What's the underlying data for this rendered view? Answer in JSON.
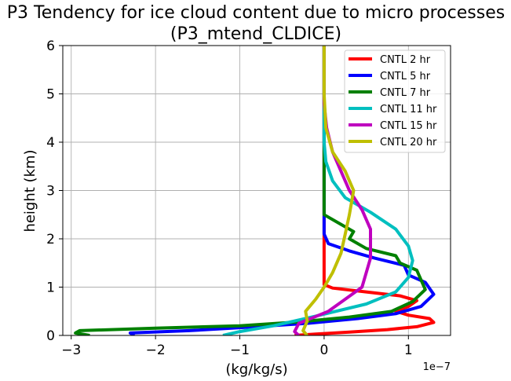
{
  "chart_data": {
    "type": "line",
    "title": "P3 Tendency for ice cloud content due to micro processes",
    "subtitle": "(P3_mtend_CLDICE)",
    "xlabel": "(kg/kg/s)",
    "ylabel": "height (km)",
    "x_offset_label": "1e−7",
    "xlim": [
      -3.1,
      1.5
    ],
    "ylim": [
      0,
      6
    ],
    "xticks": [
      -3,
      -2,
      -1,
      0,
      1
    ],
    "xtick_labels": [
      "−3",
      "−2",
      "−1",
      "0",
      "1"
    ],
    "yticks": [
      0,
      1,
      2,
      3,
      4,
      5,
      6
    ],
    "ytick_labels": [
      "0",
      "1",
      "2",
      "3",
      "4",
      "5",
      "6"
    ],
    "grid": true,
    "legend_position": "top-right",
    "series": [
      {
        "name": "CNTL 2 hr",
        "color": "#ff0000",
        "points": [
          [
            -0.35,
            0.0
          ],
          [
            -0.1,
            0.03
          ],
          [
            0.3,
            0.07
          ],
          [
            0.75,
            0.12
          ],
          [
            1.1,
            0.18
          ],
          [
            1.3,
            0.27
          ],
          [
            1.25,
            0.35
          ],
          [
            1.0,
            0.42
          ],
          [
            0.85,
            0.5
          ],
          [
            1.0,
            0.6
          ],
          [
            1.1,
            0.72
          ],
          [
            0.9,
            0.82
          ],
          [
            0.5,
            0.9
          ],
          [
            0.1,
            0.98
          ],
          [
            0.0,
            1.05
          ],
          [
            0.0,
            2.0
          ],
          [
            0.0,
            6.0
          ]
        ]
      },
      {
        "name": "CNTL 5 hr",
        "color": "#0000ff",
        "points": [
          [
            -2.25,
            0.0
          ],
          [
            -2.3,
            0.05
          ],
          [
            -1.6,
            0.1
          ],
          [
            -0.9,
            0.17
          ],
          [
            -0.2,
            0.25
          ],
          [
            0.4,
            0.35
          ],
          [
            0.85,
            0.45
          ],
          [
            1.15,
            0.6
          ],
          [
            1.3,
            0.85
          ],
          [
            1.2,
            1.1
          ],
          [
            1.0,
            1.25
          ],
          [
            0.95,
            1.45
          ],
          [
            0.6,
            1.6
          ],
          [
            0.3,
            1.75
          ],
          [
            0.05,
            1.9
          ],
          [
            0.0,
            2.1
          ],
          [
            0.0,
            6.0
          ]
        ]
      },
      {
        "name": "CNTL 7 hr",
        "color": "#008000",
        "points": [
          [
            -2.78,
            0.0
          ],
          [
            -2.95,
            0.05
          ],
          [
            -2.9,
            0.1
          ],
          [
            -2.0,
            0.15
          ],
          [
            -1.0,
            0.2
          ],
          [
            -0.3,
            0.28
          ],
          [
            0.3,
            0.38
          ],
          [
            0.8,
            0.5
          ],
          [
            1.05,
            0.7
          ],
          [
            1.2,
            0.95
          ],
          [
            1.15,
            1.15
          ],
          [
            1.1,
            1.35
          ],
          [
            0.9,
            1.5
          ],
          [
            0.85,
            1.65
          ],
          [
            0.5,
            1.8
          ],
          [
            0.3,
            2.0
          ],
          [
            0.35,
            2.15
          ],
          [
            0.2,
            2.3
          ],
          [
            0.0,
            2.5
          ],
          [
            0.0,
            6.0
          ]
        ]
      },
      {
        "name": "CNTL 11 hr",
        "color": "#00bfbf",
        "points": [
          [
            -1.2,
            0.0
          ],
          [
            -1.0,
            0.08
          ],
          [
            -0.6,
            0.2
          ],
          [
            -0.1,
            0.4
          ],
          [
            0.5,
            0.65
          ],
          [
            0.85,
            0.9
          ],
          [
            1.0,
            1.2
          ],
          [
            1.05,
            1.55
          ],
          [
            1.0,
            1.85
          ],
          [
            0.85,
            2.2
          ],
          [
            0.55,
            2.55
          ],
          [
            0.25,
            2.85
          ],
          [
            0.1,
            3.2
          ],
          [
            0.02,
            3.6
          ],
          [
            0.0,
            4.0
          ],
          [
            0.0,
            6.0
          ]
        ]
      },
      {
        "name": "CNTL 15 hr",
        "color": "#bf00bf",
        "points": [
          [
            -0.3,
            0.0
          ],
          [
            -0.35,
            0.08
          ],
          [
            -0.3,
            0.25
          ],
          [
            0.05,
            0.5
          ],
          [
            0.25,
            0.75
          ],
          [
            0.45,
            1.0
          ],
          [
            0.5,
            1.3
          ],
          [
            0.55,
            1.6
          ],
          [
            0.55,
            1.9
          ],
          [
            0.55,
            2.2
          ],
          [
            0.45,
            2.6
          ],
          [
            0.3,
            3.0
          ],
          [
            0.2,
            3.4
          ],
          [
            0.1,
            3.8
          ],
          [
            0.03,
            4.3
          ],
          [
            0.0,
            4.8
          ],
          [
            0.0,
            6.0
          ]
        ]
      },
      {
        "name": "CNTL 20 hr",
        "color": "#bfbf00",
        "points": [
          [
            -0.2,
            0.0
          ],
          [
            -0.25,
            0.1
          ],
          [
            -0.2,
            0.3
          ],
          [
            -0.22,
            0.5
          ],
          [
            -0.1,
            0.75
          ],
          [
            0.0,
            1.0
          ],
          [
            0.1,
            1.3
          ],
          [
            0.2,
            1.7
          ],
          [
            0.25,
            2.1
          ],
          [
            0.3,
            2.5
          ],
          [
            0.35,
            3.0
          ],
          [
            0.25,
            3.4
          ],
          [
            0.1,
            3.8
          ],
          [
            0.02,
            4.3
          ],
          [
            0.0,
            5.0
          ],
          [
            0.0,
            6.0
          ]
        ]
      }
    ]
  }
}
